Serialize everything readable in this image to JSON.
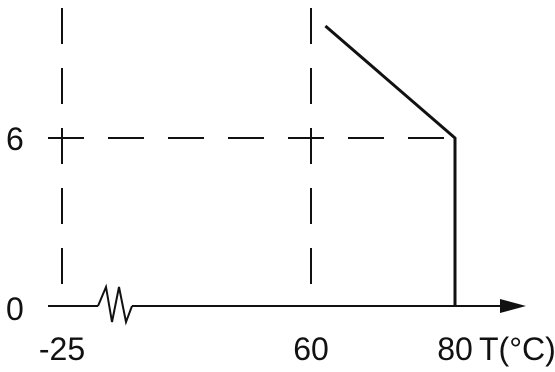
{
  "chart_data": {
    "type": "line",
    "title": "",
    "xlabel": "T(°C)",
    "ylabel": "",
    "x_ticks": [
      "-25",
      "60",
      "80"
    ],
    "y_ticks": [
      "0",
      "6"
    ],
    "x_tick_values": [
      -25,
      60,
      80
    ],
    "y_tick_values": [
      0,
      6
    ],
    "axis_break_on_x": true,
    "xlim": [
      -25,
      80
    ],
    "ylim": [
      0,
      10
    ],
    "grid": false,
    "reference_lines": {
      "vertical_dashed": [
        -25,
        60
      ],
      "horizontal_dashed": [
        6
      ]
    },
    "series": [
      {
        "points": [
          {
            "x": 62,
            "y": 10
          },
          {
            "x": 80,
            "y": 6
          },
          {
            "x": 80,
            "y": 0
          }
        ]
      }
    ],
    "colors": {
      "ink": "#111111",
      "background": "#ffffff"
    }
  }
}
